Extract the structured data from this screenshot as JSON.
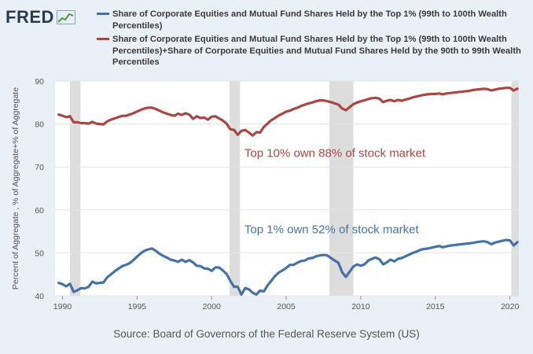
{
  "header": {
    "logo_text": "FRED",
    "logo_icon": "trend-graph-icon"
  },
  "legend": [
    {
      "label": "Share of Corporate Equities and Mutual Fund Shares Held by the Top 1% (99th to 100th Wealth Percentiles)",
      "color": "#4572a7"
    },
    {
      "label": "Share of Corporate Equities and Mutual Fund Shares Held by the Top 1% (99th to 100th Wealth Percentiles)+Share of Corporate Equities and Mutual Fund Shares Held by the 90th to 99th Wealth Percentiles",
      "color": "#aa4643"
    }
  ],
  "source_text": "Source: Board of Governors of the Federal Reserve System (US)",
  "colors": {
    "background": "#eaf0f7",
    "plot_background": "#ffffff",
    "recession_shading": "#dddddd",
    "annotation_top10": "#aa4643",
    "annotation_top1": "#4572a7"
  },
  "chart_data": {
    "type": "line",
    "title": "",
    "xlabel": "",
    "ylabel": "Percent of Aggregate , % of Aggregate+% of Aggregate",
    "xlim": [
      1989.5,
      2020.6
    ],
    "ylim": [
      40,
      90
    ],
    "grid": true,
    "yticks": [
      40,
      50,
      60,
      70,
      80,
      90
    ],
    "xticks": [
      1990,
      1995,
      2000,
      2005,
      2010,
      2015,
      2020
    ],
    "recessions": [
      [
        1990.5,
        1991.2
      ],
      [
        2001.2,
        2001.9
      ],
      [
        2007.9,
        2009.5
      ],
      [
        2020.1,
        2020.6
      ]
    ],
    "annotations": [
      {
        "text": "Top 10% own 88% of stock market",
        "x": 2002.2,
        "y": 72.3,
        "color": "#aa4643"
      },
      {
        "text": "Top 1% own 52% of stock market",
        "x": 2002.2,
        "y": 54.6,
        "color": "#4572a7"
      }
    ],
    "series": [
      {
        "name": "Share of Corporate Equities and Mutual Fund Shares Held by the Top 1% (99th to 100th Wealth Percentiles)",
        "color": "#4572a7",
        "points": [
          [
            1989.75,
            43.0
          ],
          [
            1990.0,
            42.7
          ],
          [
            1990.25,
            42.2
          ],
          [
            1990.5,
            42.8
          ],
          [
            1990.75,
            40.9
          ],
          [
            1991.0,
            41.3
          ],
          [
            1991.25,
            41.8
          ],
          [
            1991.5,
            41.7
          ],
          [
            1991.75,
            42.1
          ],
          [
            1992.0,
            43.3
          ],
          [
            1992.25,
            42.9
          ],
          [
            1992.5,
            43.0
          ],
          [
            1992.75,
            43.1
          ],
          [
            1993.0,
            44.3
          ],
          [
            1993.25,
            45.0
          ],
          [
            1993.5,
            45.7
          ],
          [
            1993.75,
            46.3
          ],
          [
            1994.0,
            46.9
          ],
          [
            1994.25,
            47.2
          ],
          [
            1994.5,
            47.6
          ],
          [
            1994.75,
            48.3
          ],
          [
            1995.0,
            49.1
          ],
          [
            1995.25,
            49.9
          ],
          [
            1995.5,
            50.5
          ],
          [
            1995.75,
            50.8
          ],
          [
            1996.0,
            51.0
          ],
          [
            1996.25,
            50.5
          ],
          [
            1996.5,
            49.8
          ],
          [
            1996.75,
            49.3
          ],
          [
            1997.0,
            48.9
          ],
          [
            1997.25,
            48.4
          ],
          [
            1997.5,
            48.2
          ],
          [
            1997.75,
            47.9
          ],
          [
            1998.0,
            48.4
          ],
          [
            1998.25,
            47.9
          ],
          [
            1998.5,
            48.3
          ],
          [
            1998.75,
            47.8
          ],
          [
            1999.0,
            47.0
          ],
          [
            1999.25,
            46.9
          ],
          [
            1999.5,
            46.4
          ],
          [
            1999.75,
            46.3
          ],
          [
            2000.0,
            45.8
          ],
          [
            2000.25,
            46.6
          ],
          [
            2000.5,
            46.6
          ],
          [
            2000.75,
            45.9
          ],
          [
            2001.0,
            45.1
          ],
          [
            2001.25,
            43.5
          ],
          [
            2001.5,
            42.1
          ],
          [
            2001.75,
            42.1
          ],
          [
            2002.0,
            40.3
          ],
          [
            2002.25,
            41.8
          ],
          [
            2002.5,
            41.5
          ],
          [
            2002.75,
            40.7
          ],
          [
            2003.0,
            40.3
          ],
          [
            2003.25,
            41.2
          ],
          [
            2003.5,
            41.0
          ],
          [
            2003.75,
            42.4
          ],
          [
            2004.0,
            43.5
          ],
          [
            2004.25,
            44.6
          ],
          [
            2004.5,
            45.4
          ],
          [
            2004.75,
            45.9
          ],
          [
            2005.0,
            46.5
          ],
          [
            2005.25,
            47.2
          ],
          [
            2005.5,
            47.2
          ],
          [
            2005.75,
            47.7
          ],
          [
            2006.0,
            48.1
          ],
          [
            2006.25,
            48.2
          ],
          [
            2006.5,
            48.7
          ],
          [
            2006.75,
            48.8
          ],
          [
            2007.0,
            49.2
          ],
          [
            2007.25,
            49.4
          ],
          [
            2007.5,
            49.5
          ],
          [
            2007.75,
            49.4
          ],
          [
            2008.0,
            48.8
          ],
          [
            2008.25,
            48.2
          ],
          [
            2008.5,
            47.7
          ],
          [
            2008.75,
            45.5
          ],
          [
            2009.0,
            44.4
          ],
          [
            2009.25,
            45.6
          ],
          [
            2009.5,
            46.8
          ],
          [
            2009.75,
            47.3
          ],
          [
            2010.0,
            47.0
          ],
          [
            2010.25,
            47.3
          ],
          [
            2010.5,
            48.2
          ],
          [
            2010.75,
            48.6
          ],
          [
            2011.0,
            48.9
          ],
          [
            2011.25,
            48.5
          ],
          [
            2011.5,
            47.3
          ],
          [
            2011.75,
            47.8
          ],
          [
            2012.0,
            48.4
          ],
          [
            2012.25,
            48.0
          ],
          [
            2012.5,
            48.6
          ],
          [
            2012.75,
            48.8
          ],
          [
            2013.0,
            49.2
          ],
          [
            2013.25,
            49.6
          ],
          [
            2013.5,
            50.0
          ],
          [
            2013.75,
            50.3
          ],
          [
            2014.0,
            50.7
          ],
          [
            2014.25,
            50.9
          ],
          [
            2014.5,
            51.0
          ],
          [
            2014.75,
            51.2
          ],
          [
            2015.0,
            51.4
          ],
          [
            2015.25,
            51.6
          ],
          [
            2015.5,
            51.3
          ],
          [
            2015.75,
            51.5
          ],
          [
            2016.0,
            51.7
          ],
          [
            2016.25,
            51.8
          ],
          [
            2016.5,
            51.9
          ],
          [
            2016.75,
            52.0
          ],
          [
            2017.0,
            52.1
          ],
          [
            2017.25,
            52.2
          ],
          [
            2017.5,
            52.3
          ],
          [
            2017.75,
            52.5
          ],
          [
            2018.0,
            52.6
          ],
          [
            2018.25,
            52.7
          ],
          [
            2018.5,
            52.5
          ],
          [
            2018.75,
            52.0
          ],
          [
            2019.0,
            52.4
          ],
          [
            2019.25,
            52.6
          ],
          [
            2019.5,
            52.8
          ],
          [
            2019.75,
            53.0
          ],
          [
            2020.0,
            52.9
          ],
          [
            2020.25,
            51.7
          ],
          [
            2020.5,
            52.5
          ]
        ]
      },
      {
        "name": "Share of Corporate Equities and Mutual Fund Shares Held by the Top 1% (99th to 100th Wealth Percentiles)+Share of Corporate Equities and Mutual Fund Shares Held by the 90th to 99th Wealth Percentiles",
        "color": "#aa4643",
        "points": [
          [
            1989.75,
            82.2
          ],
          [
            1990.0,
            81.9
          ],
          [
            1990.25,
            81.6
          ],
          [
            1990.5,
            81.8
          ],
          [
            1990.75,
            80.4
          ],
          [
            1991.0,
            80.4
          ],
          [
            1991.25,
            80.2
          ],
          [
            1991.5,
            80.2
          ],
          [
            1991.75,
            80.1
          ],
          [
            1992.0,
            80.5
          ],
          [
            1992.25,
            80.1
          ],
          [
            1992.5,
            80.0
          ],
          [
            1992.75,
            79.9
          ],
          [
            1993.0,
            80.6
          ],
          [
            1993.25,
            81.0
          ],
          [
            1993.5,
            81.3
          ],
          [
            1993.75,
            81.6
          ],
          [
            1994.0,
            81.9
          ],
          [
            1994.25,
            81.9
          ],
          [
            1994.5,
            82.2
          ],
          [
            1994.75,
            82.5
          ],
          [
            1995.0,
            82.9
          ],
          [
            1995.25,
            83.3
          ],
          [
            1995.5,
            83.6
          ],
          [
            1995.75,
            83.8
          ],
          [
            1996.0,
            83.8
          ],
          [
            1996.25,
            83.5
          ],
          [
            1996.5,
            83.1
          ],
          [
            1996.75,
            82.7
          ],
          [
            1997.0,
            82.4
          ],
          [
            1997.25,
            82.1
          ],
          [
            1997.5,
            81.9
          ],
          [
            1997.75,
            82.4
          ],
          [
            1998.0,
            82.1
          ],
          [
            1998.25,
            82.5
          ],
          [
            1998.5,
            82.2
          ],
          [
            1998.75,
            81.2
          ],
          [
            1999.0,
            81.8
          ],
          [
            1999.25,
            81.4
          ],
          [
            1999.5,
            81.5
          ],
          [
            1999.75,
            81.0
          ],
          [
            2000.0,
            81.7
          ],
          [
            2000.25,
            81.8
          ],
          [
            2000.5,
            81.3
          ],
          [
            2000.75,
            80.8
          ],
          [
            2001.0,
            80.1
          ],
          [
            2001.25,
            78.8
          ],
          [
            2001.5,
            78.6
          ],
          [
            2001.75,
            77.5
          ],
          [
            2002.0,
            78.4
          ],
          [
            2002.25,
            78.6
          ],
          [
            2002.5,
            78.0
          ],
          [
            2002.75,
            77.3
          ],
          [
            2003.0,
            78.1
          ],
          [
            2003.25,
            78.0
          ],
          [
            2003.5,
            79.3
          ],
          [
            2003.75,
            80.1
          ],
          [
            2004.0,
            80.9
          ],
          [
            2004.25,
            81.4
          ],
          [
            2004.5,
            82.0
          ],
          [
            2004.75,
            82.4
          ],
          [
            2005.0,
            82.9
          ],
          [
            2005.25,
            83.1
          ],
          [
            2005.5,
            83.5
          ],
          [
            2005.75,
            83.8
          ],
          [
            2006.0,
            84.2
          ],
          [
            2006.25,
            84.5
          ],
          [
            2006.5,
            84.8
          ],
          [
            2006.75,
            85.0
          ],
          [
            2007.0,
            85.3
          ],
          [
            2007.25,
            85.5
          ],
          [
            2007.5,
            85.5
          ],
          [
            2007.75,
            85.3
          ],
          [
            2008.0,
            85.1
          ],
          [
            2008.25,
            84.8
          ],
          [
            2008.5,
            84.5
          ],
          [
            2008.75,
            83.6
          ],
          [
            2009.0,
            83.2
          ],
          [
            2009.25,
            83.9
          ],
          [
            2009.5,
            84.6
          ],
          [
            2009.75,
            85.0
          ],
          [
            2010.0,
            85.3
          ],
          [
            2010.25,
            85.5
          ],
          [
            2010.5,
            85.8
          ],
          [
            2010.75,
            86.0
          ],
          [
            2011.0,
            86.1
          ],
          [
            2011.25,
            85.9
          ],
          [
            2011.5,
            85.1
          ],
          [
            2011.75,
            85.4
          ],
          [
            2012.0,
            85.6
          ],
          [
            2012.25,
            85.3
          ],
          [
            2012.5,
            85.6
          ],
          [
            2012.75,
            85.4
          ],
          [
            2013.0,
            85.7
          ],
          [
            2013.25,
            85.9
          ],
          [
            2013.5,
            86.2
          ],
          [
            2013.75,
            86.4
          ],
          [
            2014.0,
            86.6
          ],
          [
            2014.25,
            86.8
          ],
          [
            2014.5,
            86.9
          ],
          [
            2014.75,
            87.0
          ],
          [
            2015.0,
            87.0
          ],
          [
            2015.25,
            87.1
          ],
          [
            2015.5,
            86.9
          ],
          [
            2015.75,
            87.1
          ],
          [
            2016.0,
            87.2
          ],
          [
            2016.25,
            87.3
          ],
          [
            2016.5,
            87.4
          ],
          [
            2016.75,
            87.5
          ],
          [
            2017.0,
            87.6
          ],
          [
            2017.25,
            87.7
          ],
          [
            2017.5,
            87.9
          ],
          [
            2017.75,
            88.0
          ],
          [
            2018.0,
            88.1
          ],
          [
            2018.25,
            88.2
          ],
          [
            2018.5,
            88.1
          ],
          [
            2018.75,
            87.8
          ],
          [
            2019.0,
            88.0
          ],
          [
            2019.25,
            88.2
          ],
          [
            2019.5,
            88.3
          ],
          [
            2019.75,
            88.4
          ],
          [
            2020.0,
            88.4
          ],
          [
            2020.25,
            87.8
          ],
          [
            2020.5,
            88.2
          ]
        ]
      }
    ]
  }
}
